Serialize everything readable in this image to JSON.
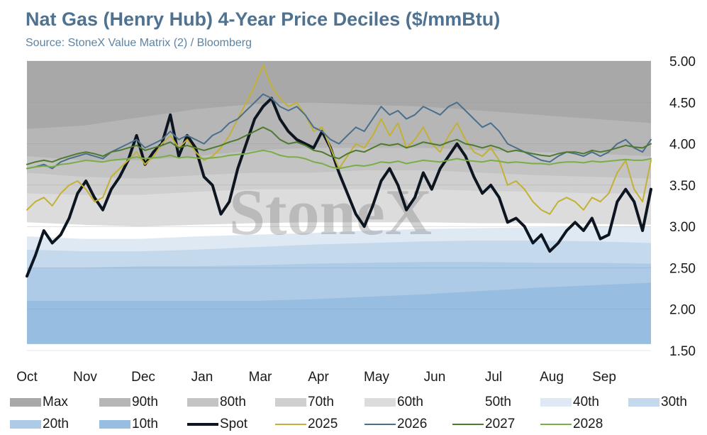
{
  "title": "Nat Gas (Henry Hub) 4-Year Price Deciles ($/mmBtu)",
  "subtitle": "Source: StoneX Value Matrix (2) / Bloomberg",
  "watermark": "StoneX",
  "chart_data": {
    "type": "area",
    "x_tick_labels": [
      "Oct",
      "Nov",
      "Dec",
      "Jan",
      "Mar",
      "Apr",
      "May",
      "Jun",
      "Jul",
      "Aug",
      "Sep"
    ],
    "y_ticks": [
      "1.50",
      "2.00",
      "2.50",
      "3.00",
      "3.50",
      "4.00",
      "4.50",
      "5.00"
    ],
    "ylim": [
      1.5,
      5.0
    ],
    "y_axis_position": "right",
    "grid": true,
    "legend_position": "bottom",
    "decile_bands": [
      {
        "name": "Max",
        "color": "#a8a8a8",
        "values": [
          5.0,
          5.0,
          5.0,
          5.0,
          5.0,
          5.0,
          5.0,
          5.0,
          5.0,
          5.0,
          5.0,
          5.0
        ]
      },
      {
        "name": "90th",
        "color": "#b6b6b6",
        "values": [
          4.18,
          4.22,
          4.32,
          4.42,
          4.48,
          4.5,
          4.47,
          4.45,
          4.4,
          4.35,
          4.3,
          4.25
        ]
      },
      {
        "name": "80th",
        "color": "#c3c3c3",
        "values": [
          3.85,
          3.8,
          3.8,
          3.85,
          3.92,
          3.95,
          3.95,
          3.95,
          3.92,
          3.9,
          3.88,
          3.85
        ]
      },
      {
        "name": "70th",
        "color": "#cfcfcf",
        "values": [
          3.65,
          3.6,
          3.58,
          3.62,
          3.65,
          3.65,
          3.68,
          3.68,
          3.65,
          3.62,
          3.6,
          3.58
        ]
      },
      {
        "name": "60th",
        "color": "#dcdcdc",
        "values": [
          3.4,
          3.38,
          3.38,
          3.42,
          3.45,
          3.45,
          3.45,
          3.45,
          3.43,
          3.42,
          3.4,
          3.4
        ]
      },
      {
        "name": "50th",
        "color": "#ffffff",
        "values": [
          3.05,
          3.02,
          3.0,
          3.02,
          3.04,
          3.05,
          3.05,
          3.05,
          3.04,
          3.04,
          3.03,
          3.02
        ]
      },
      {
        "name": "40th",
        "color": "#dfe9f4",
        "values": [
          2.88,
          2.85,
          2.85,
          2.88,
          2.9,
          2.92,
          2.95,
          2.97,
          2.98,
          2.99,
          3.0,
          3.0
        ]
      },
      {
        "name": "30th",
        "color": "#c4d9ec",
        "values": [
          2.72,
          2.7,
          2.7,
          2.72,
          2.75,
          2.78,
          2.8,
          2.82,
          2.83,
          2.83,
          2.82,
          2.8
        ]
      },
      {
        "name": "20th",
        "color": "#adcbe6",
        "values": [
          2.5,
          2.5,
          2.52,
          2.52,
          2.53,
          2.55,
          2.56,
          2.57,
          2.57,
          2.56,
          2.56,
          2.55
        ]
      },
      {
        "name": "10th",
        "color": "#97bde0",
        "values": [
          2.1,
          2.1,
          2.1,
          2.1,
          2.1,
          2.12,
          2.15,
          2.18,
          2.22,
          2.26,
          2.29,
          2.32
        ]
      }
    ],
    "band_floor": 1.58,
    "series": [
      {
        "name": "Spot",
        "color": "#0c1520",
        "width": 4,
        "values": [
          2.4,
          2.65,
          2.95,
          2.8,
          2.9,
          3.1,
          3.4,
          3.55,
          3.35,
          3.2,
          3.45,
          3.6,
          3.8,
          4.1,
          3.75,
          3.9,
          4.0,
          4.35,
          3.85,
          4.1,
          3.95,
          3.6,
          3.5,
          3.15,
          3.3,
          3.7,
          4.0,
          4.3,
          4.45,
          4.55,
          4.3,
          4.15,
          4.05,
          4.0,
          3.95,
          4.15,
          3.95,
          3.65,
          3.4,
          3.15,
          3.0,
          3.25,
          3.55,
          3.7,
          3.5,
          3.2,
          3.35,
          3.65,
          3.45,
          3.7,
          3.85,
          4.0,
          3.85,
          3.6,
          3.4,
          3.5,
          3.35,
          3.05,
          3.1,
          3.0,
          2.8,
          2.9,
          2.7,
          2.8,
          2.95,
          3.05,
          2.95,
          3.1,
          2.85,
          2.9,
          3.3,
          3.45,
          3.3,
          2.95,
          3.45
        ]
      },
      {
        "name": "2025",
        "color": "#c2b135",
        "width": 2,
        "values": [
          3.2,
          3.3,
          3.35,
          3.25,
          3.4,
          3.5,
          3.55,
          3.45,
          3.3,
          3.35,
          3.6,
          3.7,
          3.8,
          3.9,
          3.75,
          3.85,
          4.0,
          4.1,
          3.95,
          4.05,
          3.9,
          3.8,
          3.85,
          3.95,
          4.1,
          4.3,
          4.5,
          4.7,
          4.95,
          4.7,
          4.55,
          4.45,
          4.5,
          4.35,
          4.15,
          4.2,
          3.95,
          3.7,
          3.85,
          4.0,
          3.95,
          4.1,
          4.3,
          4.1,
          4.25,
          3.95,
          4.05,
          4.2,
          4.0,
          3.9,
          4.1,
          4.25,
          4.05,
          3.9,
          3.85,
          3.95,
          3.8,
          3.5,
          3.55,
          3.45,
          3.3,
          3.2,
          3.15,
          3.3,
          3.35,
          3.3,
          3.2,
          3.35,
          3.3,
          3.4,
          3.65,
          3.8,
          3.45,
          3.3,
          3.8
        ]
      },
      {
        "name": "2026",
        "color": "#4a6f8c",
        "width": 2,
        "values": [
          3.7,
          3.72,
          3.75,
          3.7,
          3.78,
          3.82,
          3.85,
          3.88,
          3.85,
          3.82,
          3.9,
          3.95,
          4.0,
          4.05,
          3.95,
          4.0,
          4.05,
          4.15,
          4.05,
          4.1,
          4.05,
          4.0,
          4.1,
          4.15,
          4.25,
          4.3,
          4.4,
          4.5,
          4.6,
          4.55,
          4.45,
          4.4,
          4.45,
          4.35,
          4.2,
          4.15,
          4.05,
          4.0,
          4.1,
          4.2,
          4.15,
          4.3,
          4.45,
          4.35,
          4.4,
          4.3,
          4.35,
          4.45,
          4.4,
          4.35,
          4.45,
          4.5,
          4.4,
          4.3,
          4.2,
          4.25,
          4.15,
          4.0,
          3.95,
          3.9,
          3.85,
          3.8,
          3.78,
          3.85,
          3.9,
          3.88,
          3.85,
          3.9,
          3.85,
          3.9,
          4.0,
          4.05,
          3.95,
          3.9,
          4.05
        ]
      },
      {
        "name": "2027",
        "color": "#4e7a2e",
        "width": 2,
        "values": [
          3.75,
          3.78,
          3.8,
          3.78,
          3.82,
          3.85,
          3.88,
          3.9,
          3.88,
          3.85,
          3.9,
          3.92,
          3.95,
          3.98,
          3.92,
          3.95,
          3.98,
          4.02,
          3.95,
          3.98,
          3.95,
          3.92,
          3.95,
          3.98,
          4.02,
          4.05,
          4.1,
          4.15,
          4.2,
          4.15,
          4.05,
          4.0,
          4.02,
          3.98,
          3.92,
          3.9,
          3.85,
          3.82,
          3.88,
          3.92,
          3.9,
          3.95,
          4.0,
          3.98,
          4.0,
          3.95,
          3.98,
          4.02,
          4.0,
          3.98,
          4.02,
          4.05,
          4.0,
          3.98,
          3.95,
          3.98,
          3.95,
          3.9,
          3.92,
          3.9,
          3.88,
          3.86,
          3.85,
          3.88,
          3.9,
          3.9,
          3.88,
          3.92,
          3.9,
          3.92,
          3.95,
          3.98,
          3.96,
          3.95,
          4.0
        ]
      },
      {
        "name": "2028",
        "color": "#79ad47",
        "width": 2,
        "values": [
          3.7,
          3.72,
          3.73,
          3.72,
          3.75,
          3.76,
          3.78,
          3.8,
          3.79,
          3.78,
          3.8,
          3.81,
          3.82,
          3.84,
          3.82,
          3.83,
          3.84,
          3.86,
          3.83,
          3.84,
          3.83,
          3.82,
          3.83,
          3.84,
          3.86,
          3.87,
          3.88,
          3.9,
          3.92,
          3.9,
          3.86,
          3.84,
          3.84,
          3.82,
          3.78,
          3.76,
          3.72,
          3.7,
          3.72,
          3.74,
          3.73,
          3.75,
          3.78,
          3.77,
          3.79,
          3.76,
          3.78,
          3.8,
          3.79,
          3.78,
          3.8,
          3.82,
          3.8,
          3.79,
          3.78,
          3.8,
          3.79,
          3.77,
          3.78,
          3.77,
          3.76,
          3.76,
          3.75,
          3.77,
          3.78,
          3.78,
          3.77,
          3.79,
          3.78,
          3.79,
          3.8,
          3.81,
          3.8,
          3.8,
          3.82
        ]
      }
    ],
    "legend": [
      {
        "label": "Max",
        "kind": "band",
        "color": "#a8a8a8"
      },
      {
        "label": "90th",
        "kind": "band",
        "color": "#b6b6b6"
      },
      {
        "label": "80th",
        "kind": "band",
        "color": "#c3c3c3"
      },
      {
        "label": "70th",
        "kind": "band",
        "color": "#cfcfcf"
      },
      {
        "label": "60th",
        "kind": "band",
        "color": "#dcdcdc"
      },
      {
        "label": "50th",
        "kind": "band",
        "color": "#ffffff"
      },
      {
        "label": "40th",
        "kind": "band",
        "color": "#dfe9f4"
      },
      {
        "label": "30th",
        "kind": "band",
        "color": "#c4d9ec"
      },
      {
        "label": "20th",
        "kind": "band",
        "color": "#adcbe6"
      },
      {
        "label": "10th",
        "kind": "band",
        "color": "#97bde0"
      },
      {
        "label": "Spot",
        "kind": "line",
        "color": "#0c1520"
      },
      {
        "label": "2025",
        "kind": "line",
        "color": "#c2b135"
      },
      {
        "label": "2026",
        "kind": "line",
        "color": "#4a6f8c"
      },
      {
        "label": "2027",
        "kind": "line",
        "color": "#4e7a2e"
      },
      {
        "label": "2028",
        "kind": "line",
        "color": "#79ad47"
      }
    ]
  }
}
